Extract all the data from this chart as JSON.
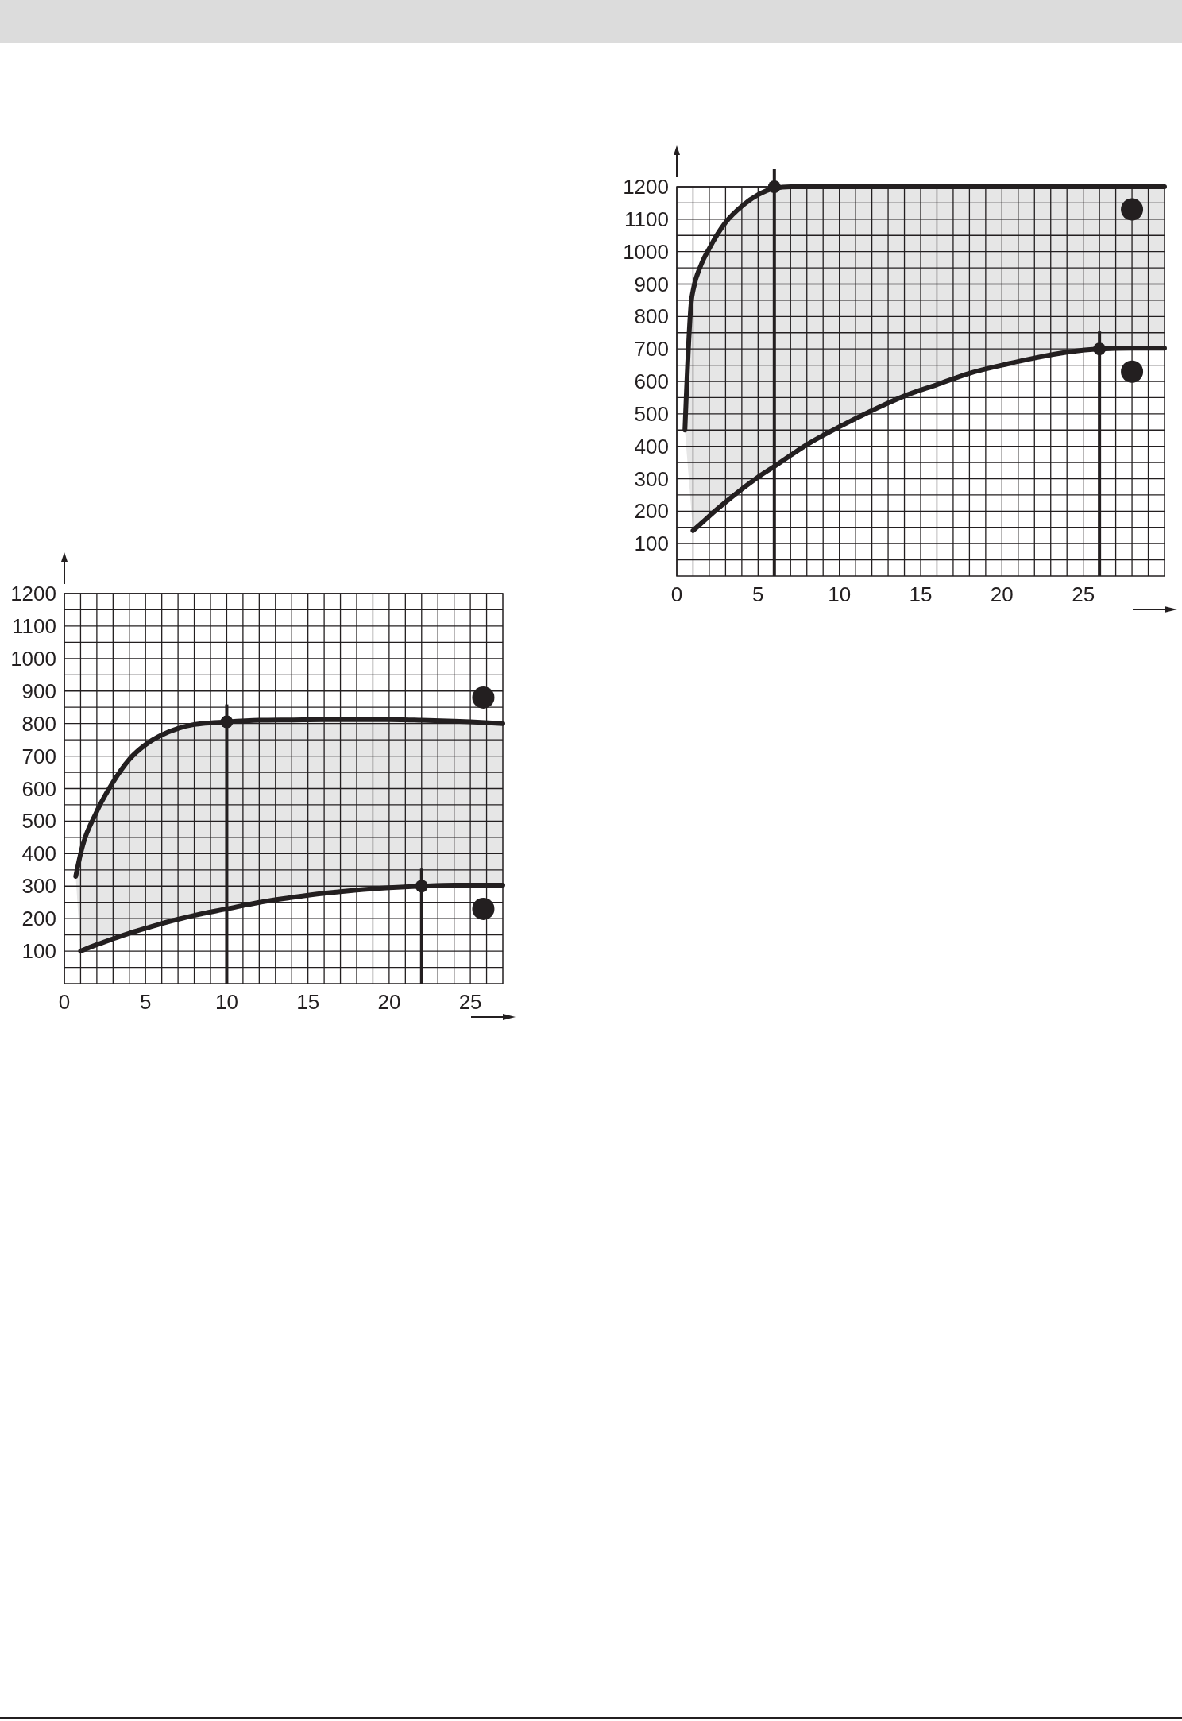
{
  "chart_data": [
    {
      "type": "line",
      "x": [
        0.5,
        0.9,
        1,
        1.5,
        2,
        3,
        4,
        5,
        6,
        7,
        8,
        10,
        12,
        14,
        16,
        18,
        20,
        22,
        24,
        26,
        28,
        30
      ],
      "series": [
        {
          "color": "#231f20",
          "values": [
            450,
            850,
            880,
            960,
            1010,
            1090,
            1140,
            1175,
            1195,
            1200,
            1200,
            1200,
            1200,
            1200,
            1200,
            1200,
            1200,
            1200,
            1200,
            1200,
            1200,
            1200
          ],
          "lower": [
            450,
            200,
            140,
            162,
            185,
            228,
            268,
            305,
            338,
            372,
            405,
            460,
            510,
            555,
            590,
            625,
            650,
            672,
            690,
            700,
            702,
            702
          ],
          "upper": [
            450,
            850,
            880,
            960,
            1010,
            1090,
            1140,
            1175,
            1195,
            1200,
            1200,
            1200,
            1200,
            1200,
            1200,
            1200,
            1200,
            1200,
            1200,
            1200,
            1200,
            1200
          ]
        },
        {
          "color": "#231f20",
          "values": [
            null,
            null,
            140,
            162,
            185,
            228,
            268,
            305,
            338,
            372,
            405,
            460,
            510,
            555,
            590,
            625,
            650,
            672,
            690,
            700,
            702,
            702
          ]
        },
        {
          "type": "line",
          "color": "#231f20",
          "x": [
            6,
            6
          ],
          "values": [
            0,
            1200
          ]
        },
        {
          "type": "line",
          "color": "#231f20",
          "x": [
            26,
            26
          ],
          "values": [
            0,
            700
          ]
        },
        {
          "type": "scatter",
          "marker": "circle",
          "color": "#231f20",
          "x": [
            6,
            26
          ],
          "values": [
            1200,
            700
          ]
        }
      ],
      "xlim": [
        0,
        30
      ],
      "ylim": [
        0,
        1200
      ],
      "xticks": [
        0,
        {
          "value": 1,
          "label": null
        },
        {
          "value": 2,
          "label": null
        },
        {
          "value": 3,
          "label": null
        },
        {
          "value": 4,
          "label": null
        },
        5,
        {
          "value": 6,
          "label": null
        },
        {
          "value": 7,
          "label": null
        },
        {
          "value": 8,
          "label": null
        },
        {
          "value": 9,
          "label": null
        },
        10,
        {
          "value": 11,
          "label": null
        },
        {
          "value": 12,
          "label": null
        },
        {
          "value": 13,
          "label": null
        },
        {
          "value": 14,
          "label": null
        },
        15,
        {
          "value": 16,
          "label": null
        },
        {
          "value": 17,
          "label": null
        },
        {
          "value": 18,
          "label": null
        },
        {
          "value": 19,
          "label": null
        },
        20,
        {
          "value": 21,
          "label": null
        },
        {
          "value": 22,
          "label": null
        },
        {
          "value": 23,
          "label": null
        },
        {
          "value": 24,
          "label": null
        },
        25,
        {
          "value": 26,
          "label": null
        },
        {
          "value": 27,
          "label": null
        },
        {
          "value": 28,
          "label": null
        },
        {
          "value": 29,
          "label": null
        }
      ],
      "yticks": [
        {
          "value": 50,
          "label": null
        },
        100,
        {
          "value": 150,
          "label": null
        },
        200,
        {
          "value": 250,
          "label": null
        },
        300,
        {
          "value": 350,
          "label": null
        },
        400,
        {
          "value": 450,
          "label": null
        },
        500,
        {
          "value": 550,
          "label": null
        },
        600,
        {
          "value": 650,
          "label": null
        },
        700,
        {
          "value": 750,
          "label": null
        },
        800,
        {
          "value": 850,
          "label": null
        },
        900,
        {
          "value": 950,
          "label": null
        },
        1000,
        {
          "value": 1050,
          "label": null
        },
        1100,
        {
          "value": 1150,
          "label": null
        },
        1200
      ],
      "grid": true,
      "line_style": "solid"
    },
    {
      "type": "line",
      "x": [
        0.7,
        1,
        2,
        3,
        4,
        5,
        6,
        7,
        8,
        10,
        12,
        14,
        16,
        18,
        20,
        22,
        24,
        25,
        27
      ],
      "series": [
        {
          "color": "#231f20",
          "values": [
            330,
            400,
            530,
            620,
            690,
            735,
            765,
            785,
            797,
            805,
            810,
            811,
            812,
            812,
            812,
            810,
            807,
            805,
            800
          ],
          "lower": [
            330,
            100,
            120,
            138,
            155,
            170,
            185,
            198,
            210,
            230,
            250,
            265,
            278,
            288,
            295,
            300,
            303,
            303,
            303
          ],
          "upper": [
            330,
            400,
            530,
            620,
            690,
            735,
            765,
            785,
            797,
            805,
            810,
            811,
            812,
            812,
            812,
            810,
            807,
            805,
            800
          ]
        },
        {
          "color": "#231f20",
          "values": [
            null,
            100,
            120,
            138,
            155,
            170,
            185,
            198,
            210,
            230,
            250,
            265,
            278,
            288,
            295,
            300,
            303,
            303,
            303
          ]
        },
        {
          "type": "line",
          "color": "#231f20",
          "x": [
            10,
            10
          ],
          "values": [
            0,
            805
          ]
        },
        {
          "type": "line",
          "color": "#231f20",
          "x": [
            22,
            22
          ],
          "values": [
            0,
            300
          ]
        },
        {
          "type": "scatter",
          "marker": "circle",
          "color": "#231f20",
          "x": [
            10,
            22
          ],
          "values": [
            805,
            300
          ]
        }
      ],
      "xlim": [
        0,
        27
      ],
      "ylim": [
        0,
        1200
      ],
      "xticks": [
        0,
        {
          "value": 1,
          "label": null
        },
        {
          "value": 2,
          "label": null
        },
        {
          "value": 3,
          "label": null
        },
        {
          "value": 4,
          "label": null
        },
        5,
        {
          "value": 6,
          "label": null
        },
        {
          "value": 7,
          "label": null
        },
        {
          "value": 8,
          "label": null
        },
        {
          "value": 9,
          "label": null
        },
        10,
        {
          "value": 11,
          "label": null
        },
        {
          "value": 12,
          "label": null
        },
        {
          "value": 13,
          "label": null
        },
        {
          "value": 14,
          "label": null
        },
        15,
        {
          "value": 16,
          "label": null
        },
        {
          "value": 17,
          "label": null
        },
        {
          "value": 18,
          "label": null
        },
        {
          "value": 19,
          "label": null
        },
        20,
        {
          "value": 21,
          "label": null
        },
        {
          "value": 22,
          "label": null
        },
        {
          "value": 23,
          "label": null
        },
        {
          "value": 24,
          "label": null
        },
        25,
        {
          "value": 26,
          "label": null
        }
      ],
      "yticks": [
        {
          "value": 50,
          "label": null
        },
        100,
        {
          "value": 150,
          "label": null
        },
        200,
        {
          "value": 250,
          "label": null
        },
        300,
        {
          "value": 350,
          "label": null
        },
        400,
        {
          "value": 450,
          "label": null
        },
        500,
        {
          "value": 550,
          "label": null
        },
        600,
        {
          "value": 650,
          "label": null
        },
        700,
        {
          "value": 750,
          "label": null
        },
        800,
        {
          "value": 850,
          "label": null
        },
        900,
        {
          "value": 950,
          "label": null
        },
        1000,
        {
          "value": 1050,
          "label": null
        },
        1100,
        {
          "value": 1150,
          "label": null
        },
        1200
      ],
      "grid": true,
      "line_style": "solid"
    }
  ]
}
